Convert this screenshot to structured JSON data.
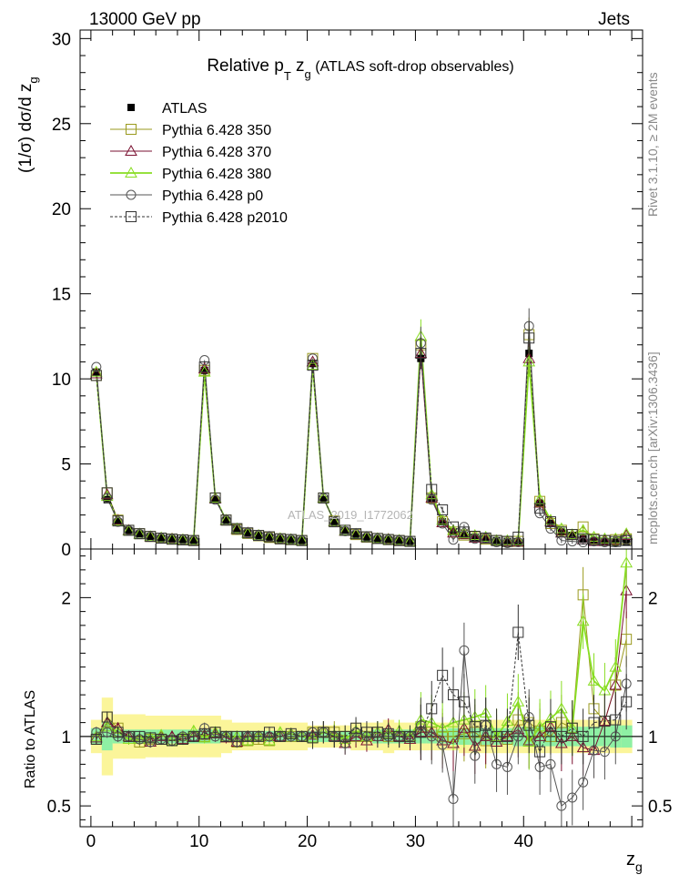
{
  "header": {
    "left": "13000 GeV pp",
    "right": "Jets"
  },
  "side_labels": {
    "right_top": "Rivet 3.1.10, ≥ 2M events",
    "right_bottom": "mcplots.cern.ch [arXiv:1306.3436]",
    "watermark": "ATLAS_2019_I1772062"
  },
  "chart_data": [
    {
      "type": "line",
      "title": "Relative p T z g (ATLAS soft-drop observables)",
      "title_parts": {
        "main": "Relative p",
        "sub1": "T",
        "mid": " z",
        "sub2": "g",
        "rest": " (ATLAS soft-drop observables)"
      },
      "ylabel": "(1/σ) dσ/d z g",
      "ylabel_parts": {
        "main": "(1/σ) dσ/d z",
        "sub": "g"
      },
      "xlim": [
        -1,
        51
      ],
      "ylim": [
        0,
        30.5
      ],
      "yticks": [
        0,
        5,
        10,
        15,
        20,
        25,
        30
      ],
      "legend": {
        "placement": "top-left",
        "entries": [
          {
            "label": "ATLAS",
            "color": "#000000",
            "marker": "filled-square"
          },
          {
            "label": "Pythia 6.428 350",
            "color": "#9a9a1e",
            "marker": "open-square"
          },
          {
            "label": "Pythia 6.428 370",
            "color": "#7a1030",
            "marker": "open-triangle"
          },
          {
            "label": "Pythia 6.428 380",
            "color": "#88dd22",
            "marker": "open-triangle"
          },
          {
            "label": "Pythia 6.428 p0",
            "color": "#555555",
            "marker": "open-circle"
          },
          {
            "label": "Pythia 6.428 p2010",
            "color": "#333333",
            "marker": "open-square",
            "dashed": true
          }
        ]
      },
      "x": [
        0.5,
        1.5,
        2.5,
        3.5,
        4.5,
        5.5,
        6.5,
        7.5,
        8.5,
        9.5,
        10.5,
        11.5,
        12.5,
        13.5,
        14.5,
        15.5,
        16.5,
        17.5,
        18.5,
        19.5,
        20.5,
        21.5,
        22.5,
        23.5,
        24.5,
        25.5,
        26.5,
        27.5,
        28.5,
        29.5,
        30.5,
        31.5,
        32.5,
        33.5,
        34.5,
        35.5,
        36.5,
        37.5,
        38.5,
        39.5,
        40.5,
        41.5,
        42.5,
        43.5,
        44.5,
        45.5,
        46.5,
        47.5,
        48.5,
        49.5
      ],
      "series": [
        {
          "name": "ATLAS",
          "values": [
            10.4,
            2.9,
            1.6,
            1.1,
            0.9,
            0.75,
            0.65,
            0.6,
            0.55,
            0.5,
            10.5,
            2.9,
            1.7,
            1.2,
            0.95,
            0.8,
            0.7,
            0.6,
            0.55,
            0.5,
            10.9,
            2.9,
            1.6,
            1.1,
            0.85,
            0.7,
            0.6,
            0.55,
            0.5,
            0.45,
            11.2,
            2.9,
            1.6,
            1.0,
            0.8,
            0.7,
            0.6,
            0.5,
            0.45,
            0.4,
            11.5,
            2.7,
            1.5,
            1.0,
            0.8,
            0.6,
            0.5,
            0.45,
            0.4,
            0.4
          ]
        },
        {
          "name": "Pythia 6.428 350",
          "values": [
            10.2,
            3.3,
            1.7,
            1.1,
            0.9,
            0.74,
            0.64,
            0.58,
            0.54,
            0.5,
            10.5,
            3.0,
            1.7,
            1.15,
            0.92,
            0.78,
            0.68,
            0.6,
            0.55,
            0.5,
            11.2,
            3.0,
            1.65,
            1.1,
            0.85,
            0.7,
            0.62,
            0.55,
            0.5,
            0.45,
            12.0,
            3.0,
            1.6,
            1.0,
            0.82,
            0.72,
            0.58,
            0.5,
            0.44,
            0.45,
            12.6,
            2.8,
            1.5,
            1.1,
            0.85,
            1.3,
            0.6,
            0.5,
            0.55,
            0.6
          ]
        },
        {
          "name": "Pythia 6.428 370",
          "values": [
            10.3,
            3.2,
            1.7,
            1.1,
            0.88,
            0.72,
            0.65,
            0.6,
            0.54,
            0.5,
            10.6,
            2.95,
            1.68,
            1.15,
            0.95,
            0.8,
            0.7,
            0.6,
            0.56,
            0.5,
            11.0,
            3.0,
            1.6,
            1.05,
            0.85,
            0.68,
            0.6,
            0.58,
            0.5,
            0.44,
            11.5,
            3.0,
            1.55,
            0.95,
            0.85,
            0.65,
            0.6,
            0.48,
            0.45,
            0.42,
            11.2,
            2.7,
            1.6,
            0.95,
            0.8,
            0.55,
            0.45,
            0.5,
            0.55,
            0.8
          ]
        },
        {
          "name": "Pythia 6.428 380",
          "values": [
            10.4,
            3.1,
            1.65,
            1.08,
            0.88,
            0.74,
            0.66,
            0.58,
            0.55,
            0.52,
            10.4,
            3.0,
            1.7,
            1.2,
            0.92,
            0.8,
            0.68,
            0.62,
            0.56,
            0.5,
            10.8,
            3.0,
            1.62,
            1.08,
            0.88,
            0.7,
            0.62,
            0.56,
            0.52,
            0.45,
            12.5,
            3.2,
            1.7,
            1.1,
            0.9,
            0.8,
            0.7,
            0.5,
            0.5,
            0.5,
            11.0,
            2.9,
            1.7,
            1.2,
            0.85,
            1.1,
            0.7,
            0.6,
            0.6,
            0.9
          ]
        },
        {
          "name": "Pythia 6.428 p0",
          "values": [
            10.7,
            3.0,
            1.6,
            1.1,
            0.88,
            0.72,
            0.64,
            0.58,
            0.55,
            0.5,
            11.1,
            2.9,
            1.7,
            1.15,
            0.95,
            0.8,
            0.7,
            0.6,
            0.55,
            0.5,
            11.2,
            3.0,
            1.6,
            1.05,
            0.88,
            0.7,
            0.6,
            0.55,
            0.5,
            0.45,
            12.1,
            2.9,
            1.5,
            0.55,
            1.3,
            0.6,
            0.65,
            0.4,
            0.35,
            0.4,
            13.1,
            2.1,
            1.2,
            0.5,
            0.45,
            0.4,
            0.45,
            0.4,
            0.4,
            0.55
          ]
        },
        {
          "name": "Pythia 6.428 p2010",
          "values": [
            10.2,
            3.3,
            1.65,
            1.1,
            0.9,
            0.74,
            0.64,
            0.58,
            0.54,
            0.5,
            10.7,
            3.0,
            1.7,
            1.2,
            0.95,
            0.8,
            0.72,
            0.6,
            0.56,
            0.5,
            10.8,
            3.0,
            1.6,
            1.1,
            0.9,
            0.72,
            0.62,
            0.56,
            0.5,
            0.45,
            11.5,
            3.5,
            2.3,
            1.3,
            1.0,
            0.75,
            0.65,
            0.5,
            0.45,
            0.7,
            12.4,
            2.4,
            1.6,
            1.0,
            0.85,
            0.6,
            0.55,
            0.5,
            0.45,
            0.5
          ]
        }
      ]
    },
    {
      "type": "line",
      "ylabel": "Ratio to ATLAS",
      "xlabel": "z g",
      "xlabel_parts": {
        "main": "z",
        "sub": "g"
      },
      "xlim": [
        -1,
        51
      ],
      "ylim": [
        0.35,
        2.35
      ],
      "yticks": [
        0.5,
        1,
        2
      ],
      "xticks": [
        0,
        10,
        20,
        30,
        40
      ],
      "band_inner_halfwidth": [
        0.06,
        0.1,
        0.05,
        0.05,
        0.05,
        0.05,
        0.05,
        0.05,
        0.05,
        0.05,
        0.05,
        0.05,
        0.04,
        0.04,
        0.04,
        0.04,
        0.04,
        0.04,
        0.04,
        0.04,
        0.04,
        0.04,
        0.04,
        0.04,
        0.04,
        0.04,
        0.05,
        0.05,
        0.05,
        0.05,
        0.05,
        0.05,
        0.05,
        0.06,
        0.06,
        0.06,
        0.06,
        0.06,
        0.06,
        0.07,
        0.07,
        0.07,
        0.07,
        0.07,
        0.07,
        0.07,
        0.07,
        0.07,
        0.08,
        0.08
      ],
      "band_outer_halfwidth": [
        0.12,
        0.28,
        0.16,
        0.16,
        0.16,
        0.15,
        0.15,
        0.15,
        0.15,
        0.15,
        0.15,
        0.15,
        0.12,
        0.1,
        0.1,
        0.1,
        0.1,
        0.1,
        0.1,
        0.1,
        0.08,
        0.08,
        0.08,
        0.08,
        0.1,
        0.1,
        0.1,
        0.12,
        0.1,
        0.1,
        0.1,
        0.1,
        0.1,
        0.1,
        0.12,
        0.12,
        0.12,
        0.12,
        0.12,
        0.12,
        0.12,
        0.12,
        0.12,
        0.12,
        0.12,
        0.12,
        0.12,
        0.12,
        0.12,
        0.12
      ],
      "series": [
        {
          "name": "Pythia 6.428 350",
          "values": [
            0.98,
            1.14,
            1.06,
            1.0,
            0.96,
            0.98,
            0.98,
            0.97,
            0.98,
            1.0,
            1.0,
            1.03,
            1.0,
            0.96,
            0.97,
            0.98,
            0.97,
            1.0,
            1.0,
            1.0,
            1.03,
            1.03,
            1.03,
            1.0,
            1.0,
            1.0,
            1.03,
            1.0,
            1.0,
            1.0,
            1.07,
            1.03,
            1.0,
            1.0,
            1.02,
            1.03,
            0.97,
            1.0,
            0.98,
            1.12,
            1.1,
            1.04,
            1.0,
            1.1,
            1.06,
            2.02,
            1.2,
            1.11,
            1.37,
            1.7
          ]
        },
        {
          "name": "Pythia 6.428 370",
          "values": [
            0.99,
            1.1,
            1.06,
            1.0,
            0.98,
            0.96,
            1.0,
            1.0,
            0.98,
            1.0,
            1.01,
            1.02,
            0.99,
            0.96,
            1.0,
            1.0,
            1.0,
            1.0,
            1.02,
            1.0,
            1.01,
            1.03,
            1.0,
            0.95,
            1.0,
            0.97,
            1.0,
            1.05,
            1.0,
            0.98,
            1.03,
            1.03,
            0.97,
            0.95,
            1.06,
            0.93,
            1.0,
            0.96,
            1.0,
            1.05,
            0.97,
            1.0,
            1.07,
            0.95,
            1.0,
            0.92,
            0.9,
            1.11,
            1.37,
            2.05
          ]
        },
        {
          "name": "Pythia 6.428 380",
          "values": [
            1.0,
            1.07,
            1.03,
            0.98,
            0.98,
            0.99,
            1.01,
            0.97,
            1.0,
            1.04,
            0.99,
            1.03,
            1.0,
            1.0,
            0.97,
            1.0,
            0.97,
            1.03,
            1.02,
            1.0,
            0.99,
            1.03,
            1.01,
            0.98,
            1.04,
            1.0,
            1.03,
            1.02,
            1.04,
            1.0,
            1.12,
            1.1,
            1.06,
            1.1,
            1.12,
            1.14,
            1.17,
            1.0,
            1.11,
            1.25,
            0.96,
            1.07,
            1.13,
            1.2,
            1.06,
            1.83,
            1.4,
            1.33,
            1.5,
            2.25
          ]
        },
        {
          "name": "Pythia 6.428 p0",
          "values": [
            1.03,
            1.03,
            1.0,
            1.0,
            0.98,
            0.96,
            0.98,
            0.97,
            1.0,
            1.0,
            1.06,
            1.0,
            1.0,
            0.96,
            1.0,
            1.0,
            1.0,
            1.0,
            1.0,
            1.0,
            1.03,
            1.03,
            1.0,
            0.95,
            1.03,
            1.0,
            1.0,
            1.0,
            1.0,
            1.0,
            1.08,
            1.0,
            0.94,
            0.55,
            1.62,
            0.86,
            1.08,
            0.8,
            0.78,
            1.0,
            1.14,
            0.78,
            0.8,
            0.5,
            0.56,
            0.67,
            0.9,
            0.89,
            1.0,
            1.38
          ]
        },
        {
          "name": "Pythia 6.428 p2010",
          "values": [
            0.98,
            1.14,
            1.03,
            1.0,
            1.0,
            0.99,
            0.98,
            0.97,
            0.98,
            1.0,
            1.02,
            1.03,
            1.0,
            1.0,
            1.0,
            1.0,
            1.03,
            1.0,
            1.02,
            1.0,
            0.99,
            1.03,
            1.0,
            1.0,
            1.06,
            1.03,
            1.03,
            1.02,
            1.0,
            1.0,
            1.03,
            1.2,
            1.44,
            1.3,
            1.25,
            1.07,
            1.08,
            1.0,
            1.0,
            1.75,
            1.08,
            0.89,
            1.07,
            1.0,
            1.06,
            1.0,
            1.1,
            1.11,
            1.12,
            1.25
          ]
        }
      ]
    }
  ]
}
